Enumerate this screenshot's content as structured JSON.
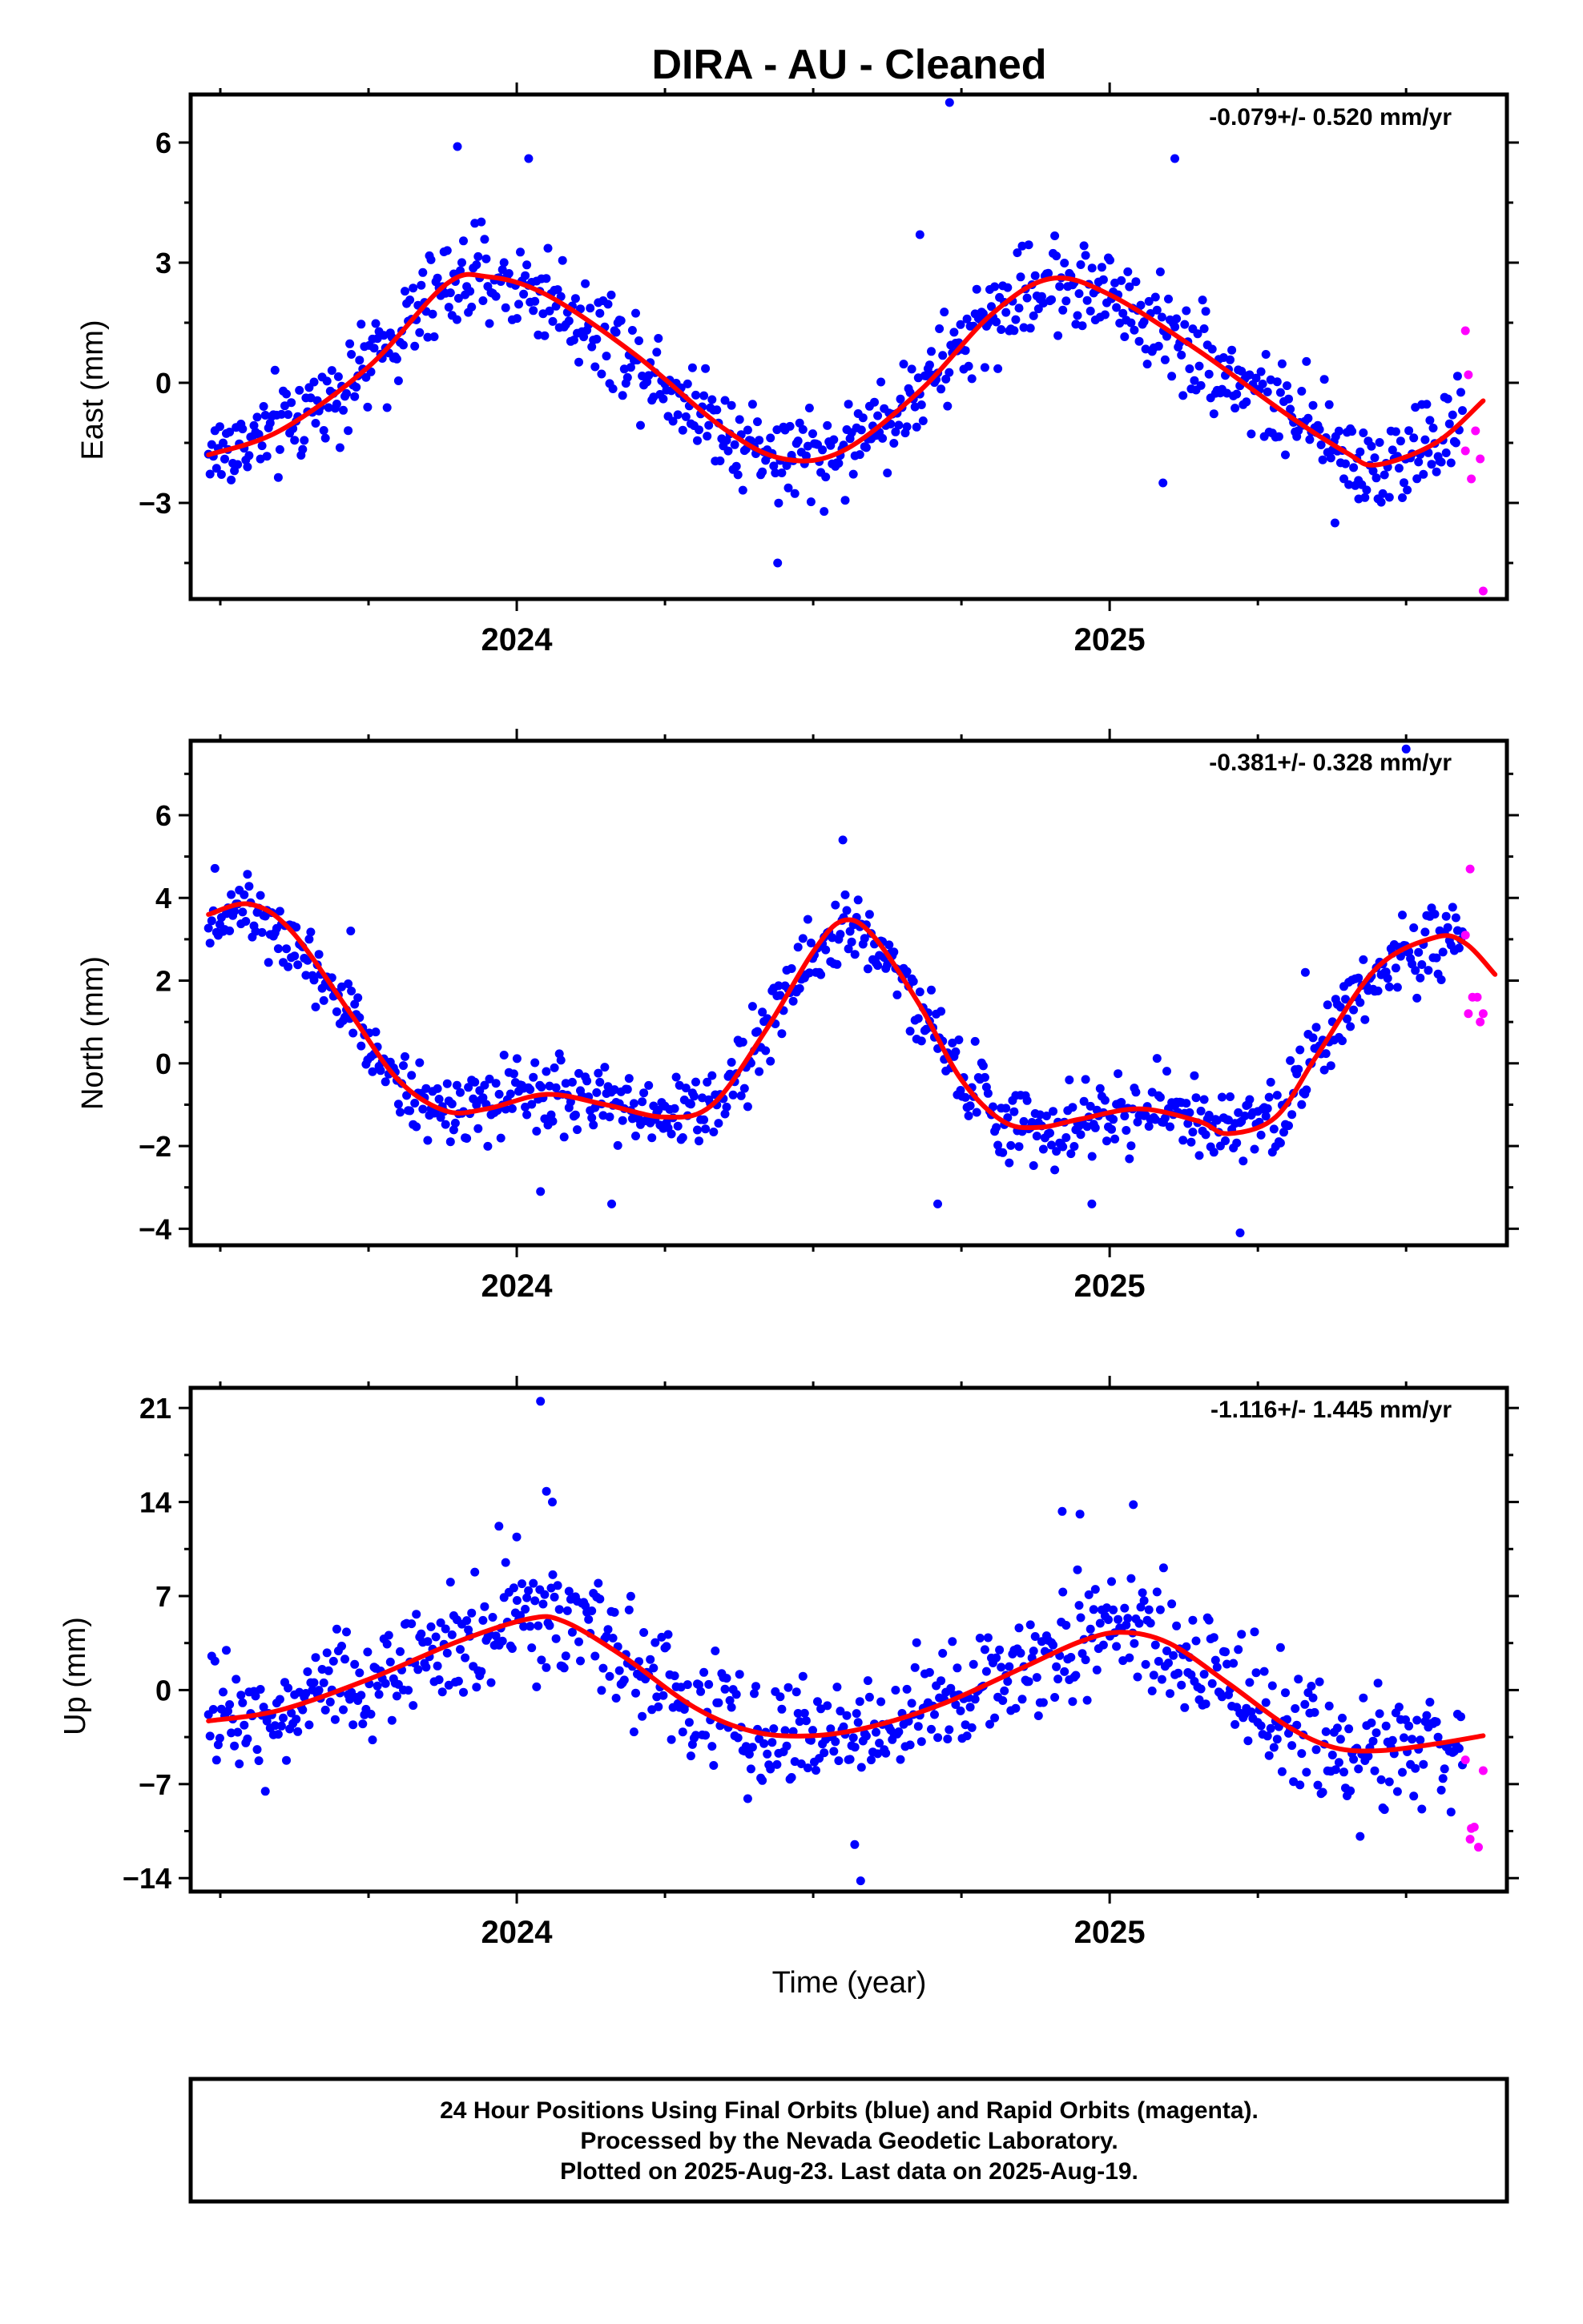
{
  "title": "DIRA  - AU - Cleaned",
  "xlabel": "Time (year)",
  "footer": {
    "line1": "24 Hour Positions Using Final Orbits (blue) and Rapid Orbits (magenta).",
    "line2": "Processed by the Nevada Geodetic Laboratory.",
    "line3": "Plotted on 2025-Aug-23. Last data on 2025-Aug-19."
  },
  "colors": {
    "final_orbits": "#0000ff",
    "rapid_orbits": "#ff00ff",
    "model_fit": "#ff0000",
    "frame": "#000000"
  },
  "chart_data": [
    {
      "type": "scatter",
      "component": "east",
      "ylabel": "East (mm)",
      "rate_label": "-0.079+/- 0.520 mm/yr",
      "xlim": [
        2023.45,
        2025.67
      ],
      "ylim": [
        -5.4,
        7.2
      ],
      "yticks": [
        -3,
        0,
        3,
        6
      ],
      "yticks_minor": [
        -4.5,
        -1.5,
        1.5,
        4.5
      ],
      "xticks": [
        2024,
        2025
      ],
      "xticks_minor": [
        2023.5,
        2023.75,
        2024.25,
        2024.5,
        2024.75,
        2025.25,
        2025.5
      ],
      "noise": 0.85,
      "fit": [
        [
          2023.48,
          -1.8
        ],
        [
          2023.6,
          -1.2
        ],
        [
          2023.75,
          0.4
        ],
        [
          2023.88,
          2.45
        ],
        [
          2023.95,
          2.65
        ],
        [
          2024.05,
          2.2
        ],
        [
          2024.2,
          0.7
        ],
        [
          2024.35,
          -1.15
        ],
        [
          2024.45,
          -1.9
        ],
        [
          2024.55,
          -1.7
        ],
        [
          2024.68,
          -0.2
        ],
        [
          2024.8,
          1.7
        ],
        [
          2024.9,
          2.6
        ],
        [
          2025.0,
          2.2
        ],
        [
          2025.15,
          0.8
        ],
        [
          2025.3,
          -0.8
        ],
        [
          2025.4,
          -1.75
        ],
        [
          2025.45,
          -2.05
        ],
        [
          2025.55,
          -1.5
        ],
        [
          2025.63,
          -0.45
        ]
      ],
      "outliers": [
        [
          2024.73,
          7.0
        ],
        [
          2025.11,
          5.6
        ],
        [
          2023.9,
          5.9
        ],
        [
          2024.02,
          5.6
        ],
        [
          2024.44,
          -4.5
        ],
        [
          2025.38,
          -3.5
        ],
        [
          2025.09,
          -2.5
        ],
        [
          2025.42,
          -2.9
        ],
        [
          2024.68,
          3.7
        ]
      ],
      "rapid": [
        [
          2025.6,
          1.3
        ],
        [
          2025.605,
          0.2
        ],
        [
          2025.6,
          -1.7
        ],
        [
          2025.61,
          -2.4
        ],
        [
          2025.617,
          -1.2
        ],
        [
          2025.625,
          -1.9
        ],
        [
          2025.63,
          -5.2
        ]
      ]
    },
    {
      "type": "scatter",
      "component": "north",
      "ylabel": "North (mm)",
      "rate_label": "-0.381+/- 0.328 mm/yr",
      "xlim": [
        2023.45,
        2025.67
      ],
      "ylim": [
        -4.4,
        7.8
      ],
      "yticks": [
        -4,
        -2,
        0,
        2,
        4,
        6
      ],
      "yticks_minor": [
        -3,
        -1,
        1,
        3,
        5,
        7
      ],
      "xticks": [
        2024,
        2025
      ],
      "xticks_minor": [
        2023.5,
        2023.75,
        2024.25,
        2024.5,
        2024.75,
        2025.25,
        2025.5
      ],
      "noise": 0.65,
      "fit": [
        [
          2023.48,
          3.6
        ],
        [
          2023.55,
          3.85
        ],
        [
          2023.62,
          3.2
        ],
        [
          2023.72,
          1.2
        ],
        [
          2023.8,
          -0.4
        ],
        [
          2023.88,
          -1.15
        ],
        [
          2023.95,
          -1.1
        ],
        [
          2024.05,
          -0.75
        ],
        [
          2024.15,
          -1.0
        ],
        [
          2024.25,
          -1.3
        ],
        [
          2024.33,
          -1.0
        ],
        [
          2024.42,
          0.8
        ],
        [
          2024.5,
          2.7
        ],
        [
          2024.55,
          3.45
        ],
        [
          2024.6,
          3.1
        ],
        [
          2024.68,
          1.4
        ],
        [
          2024.75,
          -0.4
        ],
        [
          2024.82,
          -1.4
        ],
        [
          2024.88,
          -1.55
        ],
        [
          2024.95,
          -1.35
        ],
        [
          2025.05,
          -1.1
        ],
        [
          2025.15,
          -1.4
        ],
        [
          2025.2,
          -1.7
        ],
        [
          2025.28,
          -1.3
        ],
        [
          2025.35,
          0.2
        ],
        [
          2025.45,
          2.3
        ],
        [
          2025.55,
          3.05
        ],
        [
          2025.6,
          2.9
        ],
        [
          2025.65,
          2.15
        ]
      ],
      "outliers": [
        [
          2025.5,
          7.6
        ],
        [
          2024.55,
          5.4
        ],
        [
          2024.71,
          -3.4
        ],
        [
          2025.22,
          -4.1
        ],
        [
          2025.33,
          2.2
        ],
        [
          2023.72,
          3.2
        ],
        [
          2024.04,
          -3.1
        ],
        [
          2024.16,
          -3.4
        ],
        [
          2024.97,
          -3.4
        ]
      ],
      "rapid": [
        [
          2025.6,
          3.1
        ],
        [
          2025.608,
          4.7
        ],
        [
          2025.612,
          1.6
        ],
        [
          2025.605,
          1.2
        ],
        [
          2025.62,
          1.6
        ],
        [
          2025.625,
          1.0
        ],
        [
          2025.63,
          1.2
        ]
      ]
    },
    {
      "type": "scatter",
      "component": "up",
      "ylabel": "Up (mm)",
      "rate_label": "-1.116+/- 1.445 mm/yr",
      "xlim": [
        2023.45,
        2025.67
      ],
      "ylim": [
        -15,
        22.5
      ],
      "yticks": [
        -14,
        -7,
        0,
        7,
        14,
        21
      ],
      "yticks_minor": [
        -10.5,
        -3.5,
        3.5,
        10.5,
        17.5
      ],
      "xticks": [
        2024,
        2025
      ],
      "xticks_minor": [
        2023.5,
        2023.75,
        2024.25,
        2024.5,
        2024.75,
        2025.25,
        2025.5
      ],
      "noise": 3.0,
      "fit": [
        [
          2023.48,
          -2.3
        ],
        [
          2023.6,
          -1.5
        ],
        [
          2023.75,
          0.8
        ],
        [
          2023.9,
          3.6
        ],
        [
          2024.02,
          5.3
        ],
        [
          2024.08,
          5.1
        ],
        [
          2024.18,
          2.5
        ],
        [
          2024.3,
          -1.3
        ],
        [
          2024.4,
          -3.1
        ],
        [
          2024.5,
          -3.4
        ],
        [
          2024.6,
          -2.7
        ],
        [
          2024.72,
          -1.0
        ],
        [
          2024.85,
          1.6
        ],
        [
          2024.95,
          3.6
        ],
        [
          2025.02,
          4.3
        ],
        [
          2025.1,
          3.5
        ],
        [
          2025.2,
          0.5
        ],
        [
          2025.3,
          -2.7
        ],
        [
          2025.38,
          -4.3
        ],
        [
          2025.46,
          -4.5
        ],
        [
          2025.55,
          -4.0
        ],
        [
          2025.63,
          -3.4
        ]
      ],
      "outliers": [
        [
          2024.04,
          21.5
        ],
        [
          2024.05,
          14.8
        ],
        [
          2024.06,
          14.0
        ],
        [
          2024.58,
          -14.2
        ],
        [
          2024.57,
          -11.5
        ],
        [
          2024.92,
          13.3
        ],
        [
          2024.95,
          13.1
        ],
        [
          2025.04,
          13.8
        ],
        [
          2023.97,
          12.2
        ],
        [
          2024.0,
          11.4
        ]
      ],
      "rapid": [
        [
          2025.6,
          -5.2
        ],
        [
          2025.61,
          -10.3
        ],
        [
          2025.615,
          -10.2
        ],
        [
          2025.608,
          -11.1
        ],
        [
          2025.622,
          -11.7
        ],
        [
          2025.63,
          -6.0
        ]
      ]
    }
  ]
}
